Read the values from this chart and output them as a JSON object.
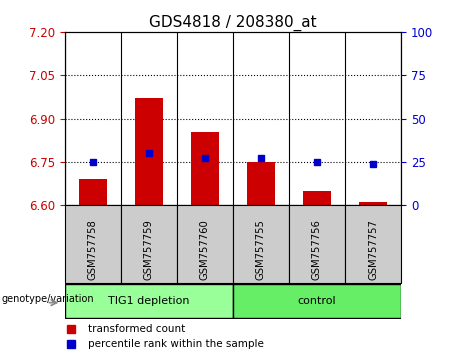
{
  "title": "GDS4818 / 208380_at",
  "categories": [
    "GSM757758",
    "GSM757759",
    "GSM757760",
    "GSM757755",
    "GSM757756",
    "GSM757757"
  ],
  "red_values": [
    6.69,
    6.97,
    6.855,
    6.75,
    6.65,
    6.61
  ],
  "blue_values": [
    25.0,
    30.0,
    27.0,
    27.0,
    25.0,
    24.0
  ],
  "baseline": 6.6,
  "ylim_left": [
    6.6,
    7.2
  ],
  "ylim_right": [
    0,
    100
  ],
  "yticks_left": [
    6.6,
    6.75,
    6.9,
    7.05,
    7.2
  ],
  "yticks_right": [
    0,
    25,
    50,
    75,
    100
  ],
  "hlines": [
    6.75,
    6.9,
    7.05
  ],
  "group1_label": "TIG1 depletion",
  "group2_label": "control",
  "group1_indices": [
    0,
    1,
    2
  ],
  "group2_indices": [
    3,
    4,
    5
  ],
  "genotype_label": "genotype/variation",
  "legend_red": "transformed count",
  "legend_blue": "percentile rank within the sample",
  "bar_color": "#cc0000",
  "dot_color": "#0000cc",
  "group1_color": "#99ff99",
  "group2_color": "#66ee66",
  "tick_label_color_left": "#cc0000",
  "tick_label_color_right": "#0000cc",
  "bar_width": 0.5,
  "title_fontsize": 11,
  "tick_fontsize": 8.5,
  "label_fontsize": 8,
  "grey_box_color": "#cccccc",
  "sep_color": "#000000"
}
